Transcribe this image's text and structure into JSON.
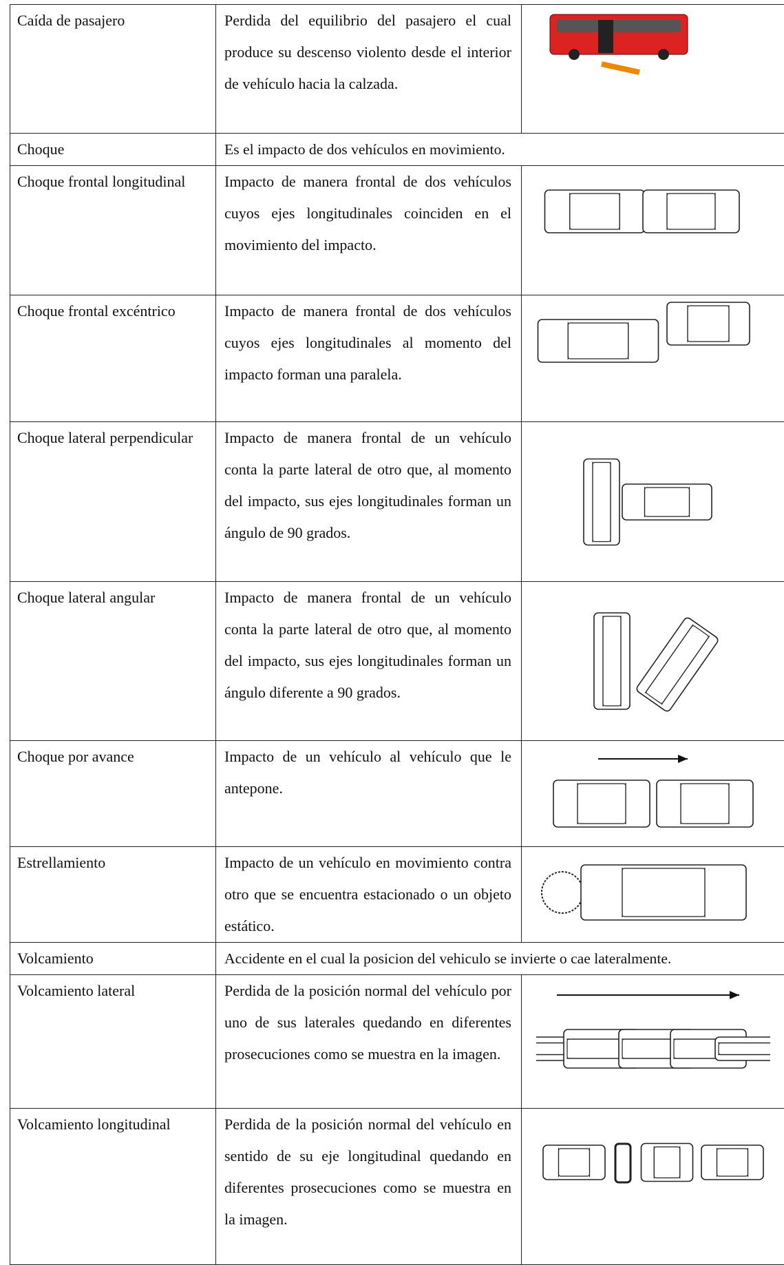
{
  "table": {
    "rows": [
      {
        "term": "Caída de pasajero",
        "description": "Perdida del equilibrio del pasajero el cual produce su descenso violento desde el interior de vehículo hacia la calzada."
      },
      {
        "term": "Choque",
        "description": "Es el impacto de dos vehículos en movimiento."
      },
      {
        "term": "Choque frontal longitudinal",
        "description": "Impacto de manera frontal de dos vehículos cuyos ejes longitudinales coinciden en el movimiento del impacto."
      },
      {
        "term": "Choque frontal excéntrico",
        "description": "Impacto de manera frontal de dos vehículos cuyos ejes longitudinales al momento del impacto forman una paralela."
      },
      {
        "term": "Choque lateral perpendicular",
        "description": "Impacto de manera frontal de un vehículo conta la parte lateral de otro que, al momento del impacto, sus ejes longitudinales forman un ángulo de 90 grados."
      },
      {
        "term": "Choque lateral angular",
        "description": "Impacto de manera frontal de un vehículo conta la parte lateral de otro que, al momento del impacto, sus ejes longitudinales forman un ángulo diferente a 90 grados."
      },
      {
        "term": "Choque por avance",
        "description": "Impacto de un vehículo al vehículo que le antepone."
      },
      {
        "term": "Estrellamiento",
        "description": "Impacto de un vehículo en movimiento contra otro que se encuentra estacionado o un objeto estático."
      },
      {
        "term": "Volcamiento",
        "description": "Accidente en el cual la posicion del vehiculo se invierte o cae lateralmente."
      },
      {
        "term": "Volcamiento lateral",
        "description": "Perdida de la posición normal del vehículo por uno de sus laterales quedando en diferentes prosecuciones como se muestra en la imagen."
      },
      {
        "term": "Volcamiento longitudinal",
        "description": "Perdida de la posición normal del vehículo en sentido de su eje longitudinal quedando en diferentes prosecuciones como se muestra en la imagen."
      }
    ]
  }
}
